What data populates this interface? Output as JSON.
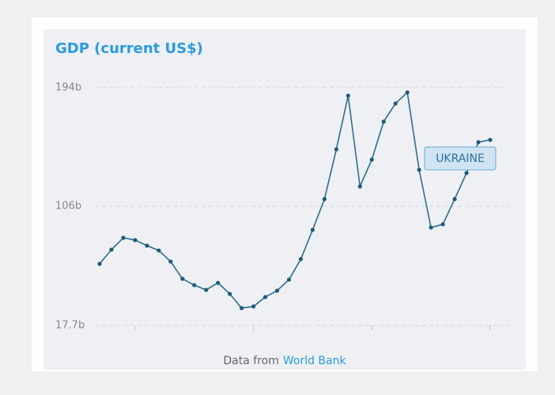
{
  "chart_data": {
    "type": "line",
    "title": "GDP (current US$)",
    "series": [
      {
        "name": "UKRAINE",
        "color": "#2f6d8f",
        "values": [
          63.4,
          73.9,
          82.7,
          81.0,
          76.9,
          73.3,
          65.1,
          52.3,
          47.6,
          44.1,
          49.3,
          41.1,
          30.6,
          31.8,
          38.8,
          43.5,
          51.7,
          66.9,
          88.6,
          111.4,
          148.3,
          188.1,
          120.8,
          140.7,
          168.8,
          182.3,
          190.5,
          133.1,
          90.3,
          92.7,
          111.4,
          130.7,
          153.6,
          155.3
        ]
      }
    ],
    "ylim": [
      17.7,
      194
    ],
    "yticks": [
      {
        "value": 17.7,
        "label": "17.7b"
      },
      {
        "value": 106,
        "label": "106b"
      },
      {
        "value": 194,
        "label": "194b"
      }
    ],
    "grid": true,
    "source_prefix": "Data from",
    "source_link": "World Bank"
  }
}
